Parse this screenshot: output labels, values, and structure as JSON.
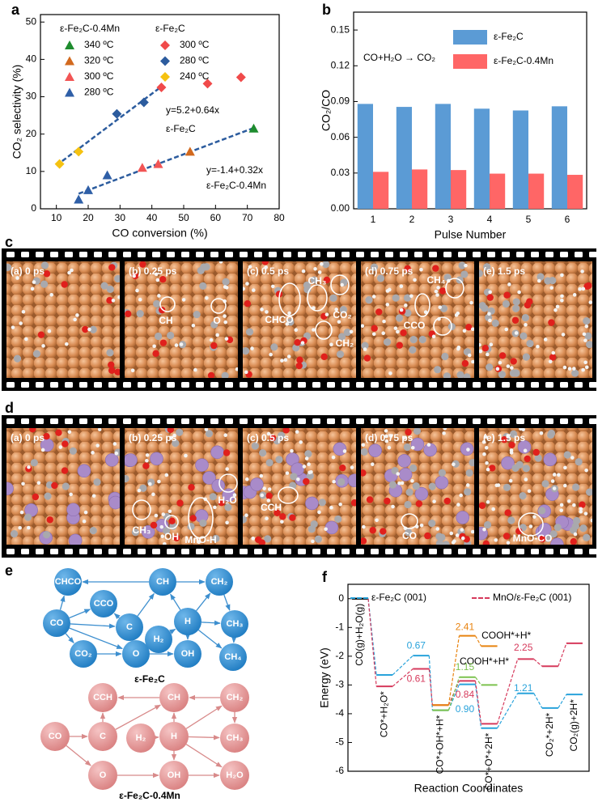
{
  "panel_labels": [
    "a",
    "b",
    "c",
    "d",
    "e",
    "f"
  ],
  "chart_data": [
    {
      "type": "scatter",
      "xlabel": "CO conversion (%)",
      "ylabel": "CO₂ selectivity (%)",
      "xlim": [
        5,
        80
      ],
      "ylim": [
        0,
        52
      ],
      "xticks": [
        10,
        20,
        30,
        40,
        50,
        60,
        70,
        80
      ],
      "yticks": [
        0,
        10,
        20,
        30,
        40,
        50
      ],
      "groups": [
        {
          "name": "ε-Fe₂C-0.4Mn",
          "marker": "triangle",
          "series": [
            {
              "name": "340 ºC",
              "color": "#1e8c2e",
              "x": [
                72
              ],
              "values": [
                21.5
              ]
            },
            {
              "name": "320 ºC",
              "color": "#d2691e",
              "x": [
                52
              ],
              "values": [
                15.3
              ]
            },
            {
              "name": "300 ºC",
              "color": "#f25555",
              "x": [
                37,
                42
              ],
              "values": [
                11,
                12
              ]
            },
            {
              "name": "280 ºC",
              "color": "#2f5fa7",
              "x": [
                17,
                20,
                26
              ],
              "values": [
                2.5,
                5,
                9
              ]
            }
          ]
        },
        {
          "name": "ε-Fe₂C",
          "marker": "diamond",
          "series": [
            {
              "name": "300 ºC",
              "color": "#f04a4a",
              "x": [
                43,
                57.5,
                68
              ],
              "values": [
                32.5,
                33.5,
                35.2
              ]
            },
            {
              "name": "280 ºC",
              "color": "#2c5c9e",
              "x": [
                29,
                37.5
              ],
              "values": [
                25.4,
                28.5
              ]
            },
            {
              "name": "240 ºC",
              "color": "#f5c211",
              "x": [
                11,
                17
              ],
              "values": [
                12,
                15.3
              ]
            }
          ]
        }
      ],
      "fits": [
        {
          "equation": "y=5.2+0.64x",
          "label": "ε-Fe₂C",
          "intercept": 5.2,
          "slope": 0.64,
          "x": [
            10,
            43
          ],
          "color": "#2c5c9e"
        },
        {
          "equation": "y=-1.4+0.32x",
          "label": "ε-Fe₂C-0.4Mn",
          "intercept": -1.4,
          "slope": 0.32,
          "x": [
            17,
            72
          ],
          "color": "#2c5c9e"
        }
      ]
    },
    {
      "type": "bar",
      "xlabel": "Pulse Number",
      "ylabel": "CO₂/CO",
      "annotation": "CO+H₂O → CO₂",
      "categories": [
        "1",
        "2",
        "3",
        "4",
        "5",
        "6"
      ],
      "ylim": [
        0,
        0.165
      ],
      "yticks": [
        {
          "value": 0,
          "label": "0.00"
        },
        {
          "value": 0.03,
          "label": "0.03"
        },
        {
          "value": 0.06,
          "label": "0.06"
        },
        {
          "value": 0.09,
          "label": "0.09"
        },
        {
          "value": 0.12,
          "label": "0.12"
        },
        {
          "value": 0.15,
          "label": "0.15"
        }
      ],
      "series": [
        {
          "name": "ε-Fe₂C",
          "color": "#5b9bd5",
          "values": [
            0.088,
            0.0855,
            0.088,
            0.084,
            0.0825,
            0.086
          ]
        },
        {
          "name": "ε-Fe₂C-0.4Mn",
          "color": "#ff6666",
          "values": [
            0.031,
            0.033,
            0.0325,
            0.0295,
            0.0295,
            0.0285
          ]
        }
      ]
    },
    {
      "type": "energy",
      "xlabel": "Reaction Coordinates",
      "ylabel": "Energy (eV)",
      "xlim": [
        -0.5,
        9.4
      ],
      "ylim": [
        -6,
        0.5
      ],
      "yticks": [
        0,
        -1,
        -2,
        -3,
        -4,
        -5,
        -6
      ],
      "series": [
        {
          "name": "ε-Fe₂C (001)",
          "color": "#29a3db",
          "x": [
            0,
            1,
            2.5,
            3.3,
            4.4,
            5.3,
            6.8,
            7.8,
            8.8
          ],
          "values": [
            0,
            -2.65,
            -1.98,
            -3.88,
            -2.98,
            -4.5,
            -3.29,
            -3.8,
            -3.33
          ]
        },
        {
          "name": "MnO/ε-Fe₂C (001)",
          "color": "#d63a5c",
          "x": [
            0,
            1,
            2.5,
            3.3,
            4.4,
            5.3,
            6.8,
            7.8,
            8.8
          ],
          "values": [
            0,
            -3.05,
            -2.44,
            -3.7,
            -2.86,
            -4.35,
            -2.1,
            -2.35,
            -1.55
          ]
        },
        {
          "color": "#7cc24e",
          "x": [
            3.3,
            4.4,
            5.3
          ],
          "values": [
            -3.88,
            -2.73,
            -3.0
          ]
        },
        {
          "color": "#e8830f",
          "x": [
            3.3,
            4.4,
            5.3
          ],
          "values": [
            -3.7,
            -1.29,
            -1.65
          ]
        }
      ],
      "states": [
        {
          "x": 0,
          "label": "CO(g)+H₂O(g)"
        },
        {
          "x": 1,
          "label": "CO*+H₂O*"
        },
        {
          "x": 3.3,
          "label": "CO*+OH*+H*"
        },
        {
          "x": 5.3,
          "label": "CO*+O*+2H*"
        },
        {
          "x": 7.8,
          "label": "CO₂*+2H*"
        },
        {
          "x": 8.8,
          "label": "CO₂(g)+2H*"
        }
      ],
      "annotations": [
        {
          "text": "0.67",
          "x": 2.3,
          "y": -1.65,
          "color": "#29a3db"
        },
        {
          "text": "0.61",
          "x": 2.3,
          "y": -2.8,
          "color": "#d63a5c"
        },
        {
          "text": "2.41",
          "x": 4.3,
          "y": -1.0,
          "color": "#e8830f"
        },
        {
          "text": "COOH*+H*",
          "x": 6.0,
          "y": -1.3,
          "color": "#000000"
        },
        {
          "text": "COOH*+H*",
          "x": 5.1,
          "y": -2.2,
          "color": "#000000"
        },
        {
          "text": "1.15",
          "x": 4.3,
          "y": -2.4,
          "color": "#7cc24e"
        },
        {
          "text": "0.84",
          "x": 4.3,
          "y": -3.35,
          "color": "#d63a5c"
        },
        {
          "text": "0.90",
          "x": 4.3,
          "y": -3.85,
          "color": "#29a3db"
        },
        {
          "text": "2.25",
          "x": 6.7,
          "y": -1.72,
          "color": "#d63a5c"
        },
        {
          "text": "1.21",
          "x": 6.7,
          "y": -3.13,
          "color": "#29a3db"
        }
      ]
    }
  ],
  "snapshots": [
    {
      "frames": [
        {
          "title": "(a) 0 ps",
          "labels": []
        },
        {
          "title": "(b) 0.25 ps",
          "labels": [
            "CH",
            "O"
          ]
        },
        {
          "title": "(c) 0.5 ps",
          "labels": [
            "CH₃",
            "CHCO",
            "CO₂",
            "CH₂"
          ]
        },
        {
          "title": "(d) 0.75 ps",
          "labels": [
            "CH₄",
            "CCO"
          ]
        },
        {
          "title": "(e) 1.5 ps",
          "labels": []
        }
      ]
    },
    {
      "frames": [
        {
          "title": "(a) 0 ps",
          "labels": []
        },
        {
          "title": "(b) 0.25 ps",
          "labels": [
            "H₂O",
            "CH₃",
            "OH",
            "MnO-H"
          ]
        },
        {
          "title": "(c) 0.5 ps",
          "labels": [
            "CCH"
          ]
        },
        {
          "title": "(d) 0.75 ps",
          "labels": [
            "CO"
          ]
        },
        {
          "title": "(e) 1.5 ps",
          "labels": [
            "MnO-CO"
          ]
        }
      ]
    }
  ],
  "networks": [
    {
      "caption": "ε-Fe₂C",
      "nodes": [
        "CHCO",
        "CCO",
        "CH",
        "CH₂",
        "CO",
        "C",
        "H",
        "H₂",
        "CH₃",
        "CO₂",
        "O",
        "OH",
        "CH₄"
      ]
    },
    {
      "caption": "ε-Fe₂C-0.4Mn",
      "nodes": [
        "CCH",
        "CH",
        "CH₂",
        "CO",
        "C",
        "H₂",
        "H",
        "CH₃",
        "O",
        "OH",
        "H₂O"
      ]
    }
  ]
}
